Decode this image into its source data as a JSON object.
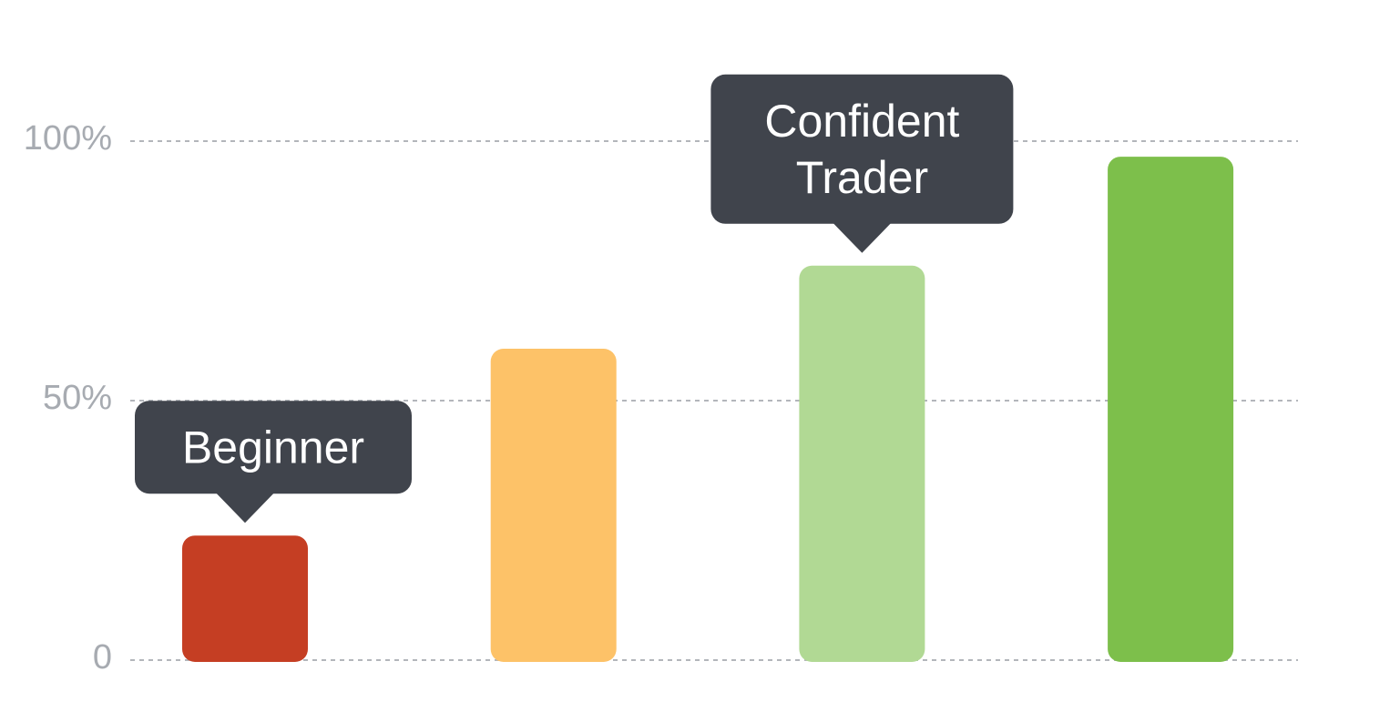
{
  "chart_data": {
    "type": "bar",
    "title": "",
    "xlabel": "",
    "ylabel": "",
    "ylim": [
      0,
      100
    ],
    "y_ticks": [
      {
        "value": 0,
        "label": "0"
      },
      {
        "value": 50,
        "label": "50%"
      },
      {
        "value": 100,
        "label": "100%"
      }
    ],
    "grid": true,
    "values": [
      24,
      60,
      76,
      97
    ],
    "bar_colors": [
      "#c53e23",
      "#fdc268",
      "#b1d994",
      "#7dbf4b"
    ],
    "annotations": [
      {
        "bar_index": 0,
        "lines": [
          "Beginner"
        ]
      },
      {
        "bar_index": 2,
        "lines": [
          "Confident",
          "Trader"
        ]
      }
    ],
    "callout_color": "#40444c"
  }
}
